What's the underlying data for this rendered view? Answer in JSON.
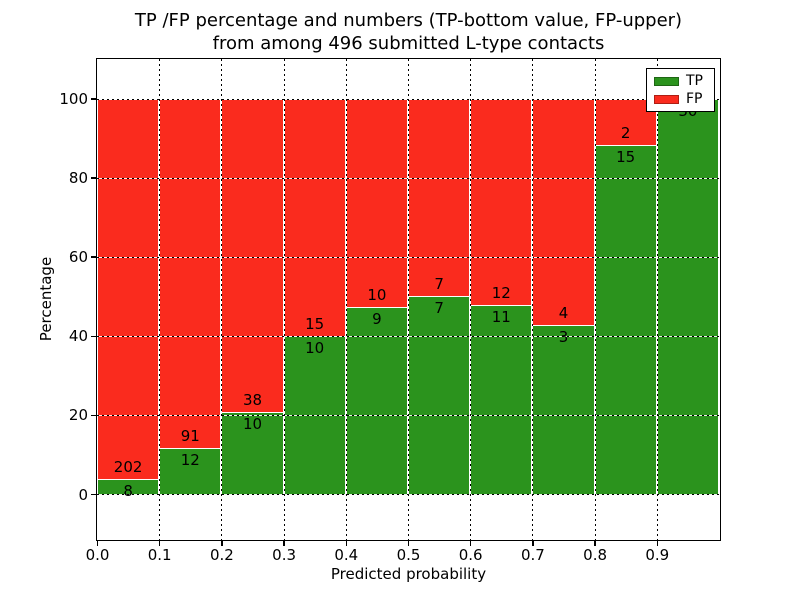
{
  "chart_data": {
    "type": "bar",
    "variant": "stacked-percentage-histogram",
    "title_line1": "TP /FP percentage and numbers (TP-bottom value, FP-upper)",
    "title_line2": "from among 496 submitted L-type contacts",
    "xlabel": "Predicted probability",
    "ylabel": "Percentage",
    "total_contacts": 496,
    "bin_width": 0.1,
    "bin_starts": [
      0.0,
      0.1,
      0.2,
      0.3,
      0.4,
      0.5,
      0.6,
      0.7,
      0.8,
      0.9
    ],
    "xlim": [
      0.0,
      1.0
    ],
    "xtick_labels": [
      "0.0",
      "0.1",
      "0.2",
      "0.3",
      "0.4",
      "0.5",
      "0.6",
      "0.7",
      "0.8",
      "0.9"
    ],
    "ytick_values": [
      0,
      20,
      40,
      60,
      80,
      100
    ],
    "series": [
      {
        "name": "TP",
        "color": "#2b931d",
        "values": [
          8,
          12,
          10,
          10,
          9,
          7,
          11,
          3,
          15,
          30
        ]
      },
      {
        "name": "FP",
        "color": "#fa2b1e",
        "values": [
          202,
          91,
          38,
          15,
          10,
          7,
          12,
          4,
          2,
          0
        ]
      }
    ],
    "tp_percent": [
      3.8,
      11.7,
      20.8,
      40.0,
      47.4,
      50.0,
      47.8,
      42.9,
      88.2,
      100.0
    ],
    "legend": {
      "position": "upper-right",
      "entries": [
        "TP",
        "FP"
      ]
    },
    "grid": {
      "style": "dotted",
      "color": "#000000"
    },
    "bar_edge_color": "#ffffff",
    "axis_color": "#000000"
  }
}
